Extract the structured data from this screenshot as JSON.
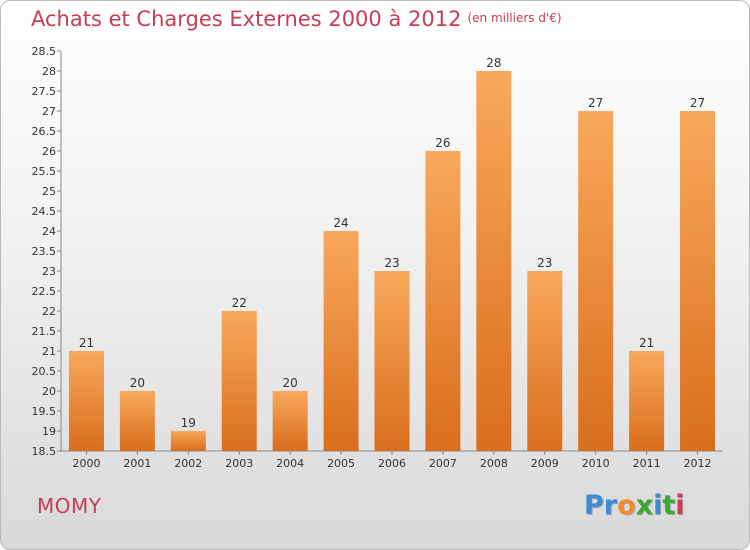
{
  "header": {
    "title": "Achats et Charges Externes 2000 à 2012",
    "unit_note": "(en milliers d'€)"
  },
  "footer": {
    "town": "MOMY",
    "logo_text": "Proxiti",
    "logo_colors": [
      "#3a8ad6",
      "#3a8ad6",
      "#f28c28",
      "#3aaa35",
      "#3a8ad6",
      "#3aaa35",
      "#c63d55"
    ]
  },
  "colors": {
    "bar_light": "#f9a85b",
    "bar_dark": "#d96e1c",
    "axis": "#888888",
    "text": "#333333",
    "title": "#c63d55"
  },
  "chart_data": {
    "type": "bar",
    "categories": [
      "2000",
      "2001",
      "2002",
      "2003",
      "2004",
      "2005",
      "2006",
      "2007",
      "2008",
      "2009",
      "2010",
      "2011",
      "2012"
    ],
    "values": [
      21,
      20,
      19,
      22,
      20,
      24,
      23,
      26,
      28,
      23,
      27,
      21,
      27
    ],
    "data_labels": [
      "21",
      "20",
      "19",
      "22",
      "20",
      "24",
      "23",
      "26",
      "28",
      "23",
      "27",
      "21",
      "27"
    ],
    "ylim": [
      18.5,
      28.5
    ],
    "yticks": [
      18.5,
      19,
      19.5,
      20,
      20.5,
      21,
      21.5,
      22,
      22.5,
      23,
      23.5,
      24,
      24.5,
      25,
      25.5,
      26,
      26.5,
      27,
      27.5,
      28,
      28.5
    ],
    "ytick_labels": [
      "18.5",
      "19",
      "19.5",
      "20",
      "20.5",
      "21",
      "21.5",
      "22",
      "22.5",
      "23",
      "23.5",
      "24",
      "24.5",
      "25",
      "25.5",
      "26",
      "26.5",
      "27",
      "27.5",
      "28",
      "28.5"
    ],
    "grid": false,
    "legend": "none",
    "title": "Achats et Charges Externes 2000 à 2012",
    "xlabel": "",
    "ylabel": ""
  }
}
